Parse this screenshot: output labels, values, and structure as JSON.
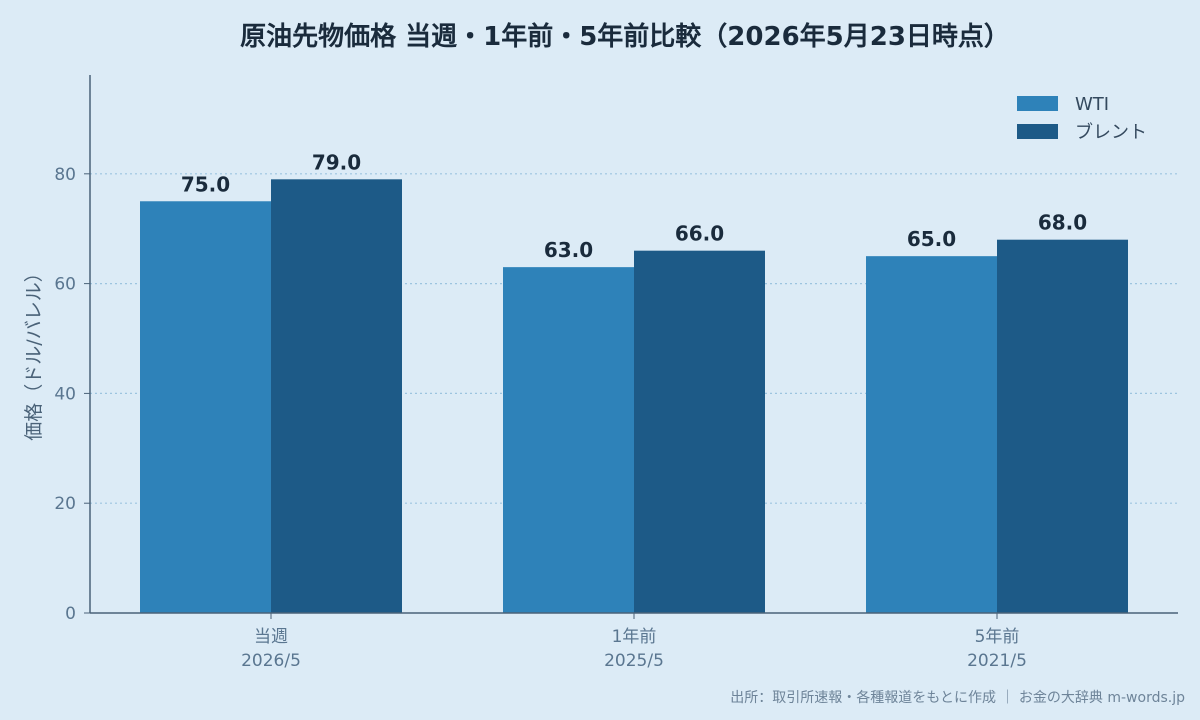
{
  "chart_data": {
    "type": "bar",
    "title": "原油先物価格 当週・1年前・5年前比較（2026年5月23日時点）",
    "ylabel": "価格（ドル/バレル）",
    "xlabel": "",
    "ylim": [
      0,
      98
    ],
    "yticks": [
      0,
      20,
      40,
      60,
      80
    ],
    "grid": true,
    "legend_position": "top-right",
    "categories": [
      [
        "当週",
        "2026/5"
      ],
      [
        "1年前",
        "2025/5"
      ],
      [
        "5年前",
        "2021/5"
      ]
    ],
    "series": [
      {
        "name": "WTI",
        "color": "#2e82b9",
        "values": [
          75.0,
          63.0,
          65.0
        ],
        "labels": [
          "75.0",
          "63.0",
          "65.0"
        ]
      },
      {
        "name": "ブレント",
        "color": "#1d5a87",
        "values": [
          79.0,
          66.0,
          68.0
        ],
        "labels": [
          "79.0",
          "66.0",
          "68.0"
        ]
      }
    ],
    "source": "出所：取引所速報・各種報道をもとに作成 ｜ お金の大辞典 m-words.jp"
  }
}
